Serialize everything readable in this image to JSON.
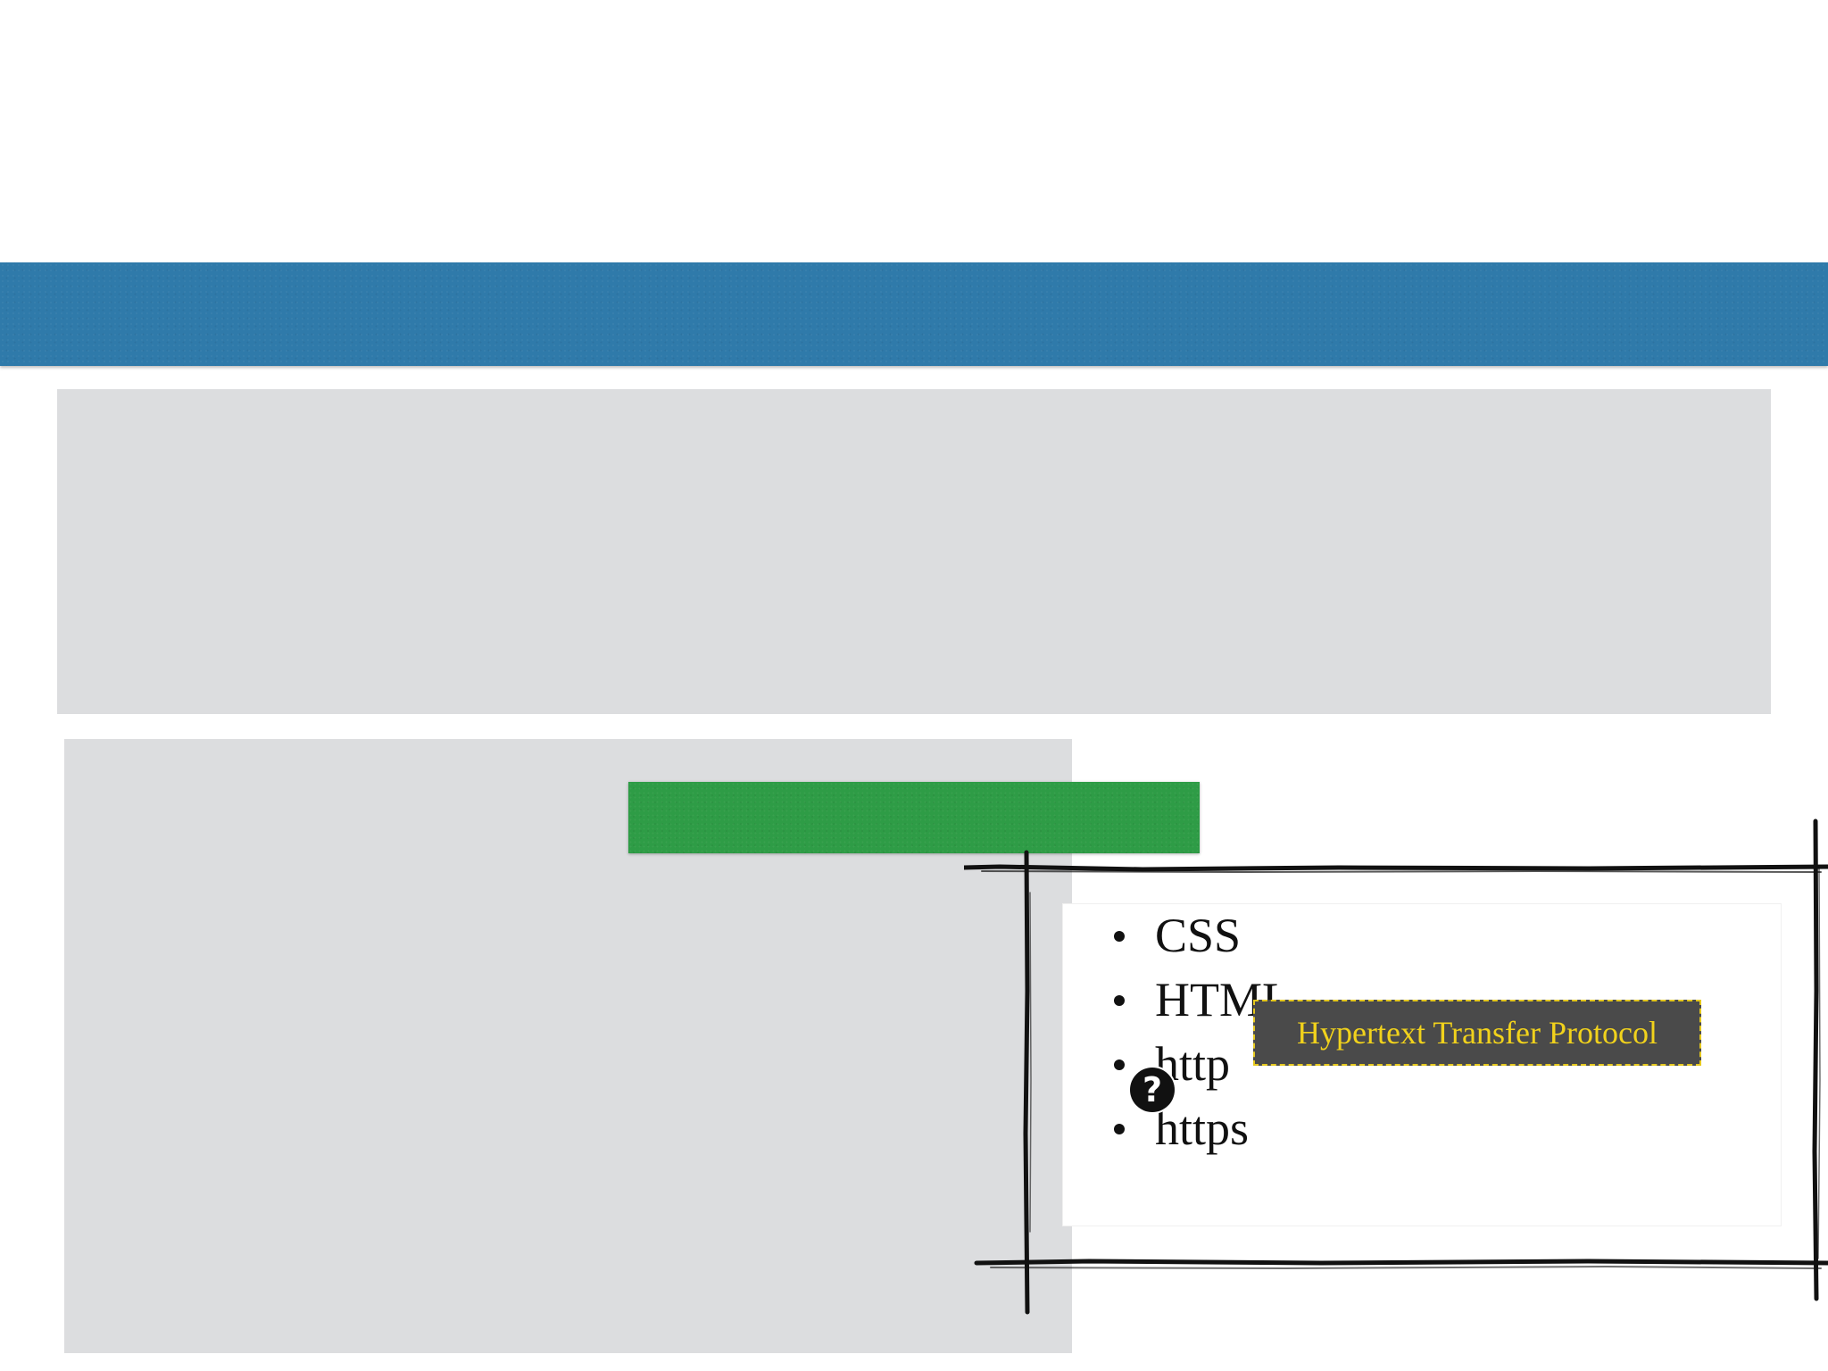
{
  "topics": {
    "items": [
      {
        "label": "CSS"
      },
      {
        "label": "HTML"
      },
      {
        "label": "http"
      },
      {
        "label": "https"
      }
    ]
  },
  "tooltip": {
    "text": "Hypertext Transfer Protocol"
  },
  "help_icon": {
    "glyph": "?",
    "icon": "question-circle-icon"
  },
  "colors": {
    "header_band": "#2f7aaa",
    "green_bar": "#2e9c46",
    "panel_gray": "#dcdddf",
    "tooltip_bg": "#4a4a4a",
    "tooltip_text": "#f1d21c"
  }
}
